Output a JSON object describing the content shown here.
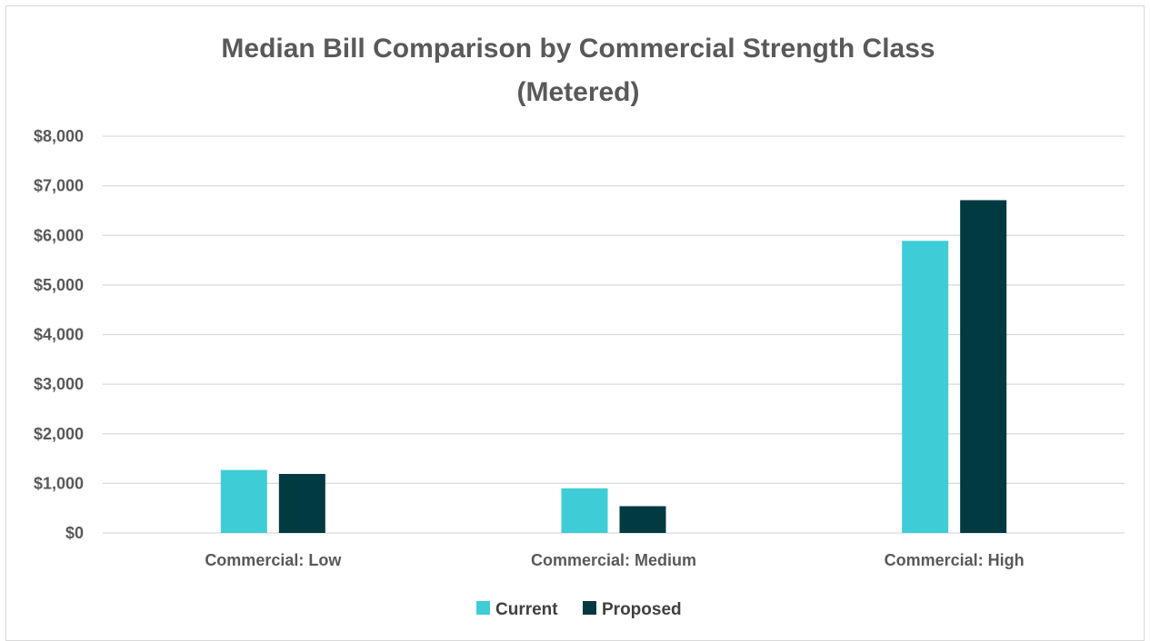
{
  "chart_data": {
    "type": "bar",
    "title_line1": "Median Bill Comparison by Commercial Strength Class",
    "title_line2": "(Metered)",
    "categories": [
      "Commercial: Low",
      "Commercial: Medium",
      "Commercial: High"
    ],
    "series": [
      {
        "name": "Current",
        "color": "#3ecdd6",
        "values": [
          1270,
          900,
          5890
        ]
      },
      {
        "name": "Proposed",
        "color": "#023a41",
        "values": [
          1190,
          540,
          6710
        ]
      }
    ],
    "ylim": [
      0,
      8000
    ],
    "yticks": [
      0,
      1000,
      2000,
      3000,
      4000,
      5000,
      6000,
      7000,
      8000
    ],
    "ytick_labels": [
      "$0",
      "$1,000",
      "$2,000",
      "$3,000",
      "$4,000",
      "$5,000",
      "$6,000",
      "$7,000",
      "$8,000"
    ],
    "grid": true,
    "legend_position": "bottom"
  }
}
